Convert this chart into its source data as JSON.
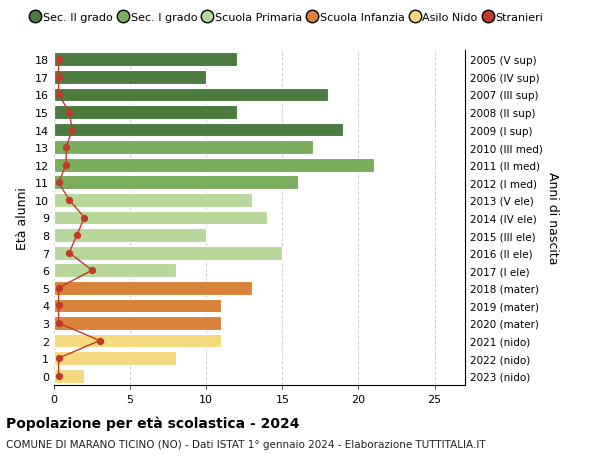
{
  "ages": [
    18,
    17,
    16,
    15,
    14,
    13,
    12,
    11,
    10,
    9,
    8,
    7,
    6,
    5,
    4,
    3,
    2,
    1,
    0
  ],
  "values": [
    12,
    10,
    18,
    12,
    19,
    17,
    21,
    16,
    13,
    14,
    10,
    15,
    8,
    13,
    11,
    11,
    11,
    8,
    2
  ],
  "right_labels": [
    "2005 (V sup)",
    "2006 (IV sup)",
    "2007 (III sup)",
    "2008 (II sup)",
    "2009 (I sup)",
    "2010 (III med)",
    "2011 (II med)",
    "2012 (I med)",
    "2013 (V ele)",
    "2014 (IV ele)",
    "2015 (III ele)",
    "2016 (II ele)",
    "2017 (I ele)",
    "2018 (mater)",
    "2019 (mater)",
    "2020 (mater)",
    "2021 (nido)",
    "2022 (nido)",
    "2023 (nido)"
  ],
  "bar_colors": [
    "#4a7c40",
    "#4a7c40",
    "#4a7c40",
    "#4a7c40",
    "#4a7c40",
    "#7aad5e",
    "#7aad5e",
    "#7aad5e",
    "#b8d89b",
    "#b8d89b",
    "#b8d89b",
    "#b8d89b",
    "#b8d89b",
    "#d9823a",
    "#d9823a",
    "#d9823a",
    "#f5d97e",
    "#f5d97e",
    "#f5d97e"
  ],
  "stranieri_x": [
    0.3,
    0.3,
    0.3,
    1.0,
    1.2,
    0.8,
    0.8,
    0.3,
    1.0,
    2.0,
    1.5,
    1.0,
    2.5,
    0.3,
    0.3,
    0.3,
    3.0,
    0.3,
    0.3
  ],
  "legend_labels": [
    "Sec. II grado",
    "Sec. I grado",
    "Scuola Primaria",
    "Scuola Infanzia",
    "Asilo Nido",
    "Stranieri"
  ],
  "legend_colors": [
    "#4a7c40",
    "#7aad5e",
    "#b8d89b",
    "#d9823a",
    "#f5d97e",
    "#c0392b"
  ],
  "title": "Popolazione per età scolastica - 2024",
  "subtitle": "COMUNE DI MARANO TICINO (NO) - Dati ISTAT 1° gennaio 2024 - Elaborazione TUTTITALIA.IT",
  "ylabel": "Età alunni",
  "right_ylabel": "Anni di nascita",
  "xlim": [
    0,
    27
  ],
  "xticks": [
    0,
    5,
    10,
    15,
    20,
    25
  ],
  "background_color": "#ffffff",
  "grid_color": "#d0d0d0",
  "bar_height": 0.78,
  "stranieri_color": "#c0392b"
}
